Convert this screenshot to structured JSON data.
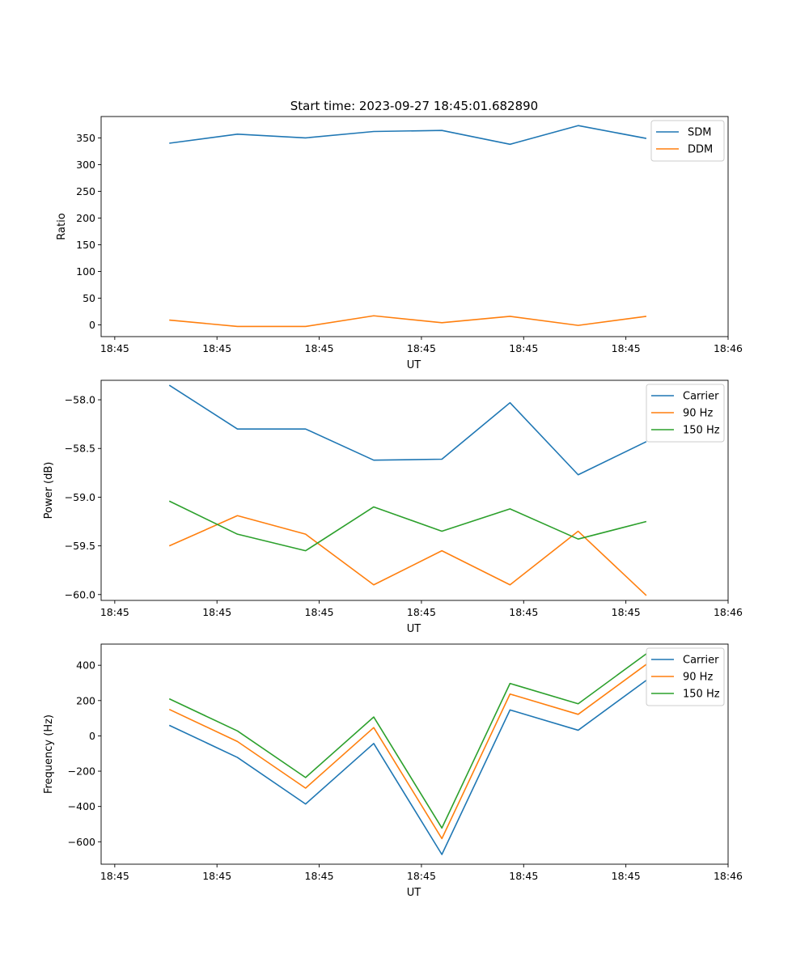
{
  "figure_title": "Start time: 2023-09-27 18:45:01.682890",
  "colors": {
    "blue": "#1f77b4",
    "orange": "#ff7f0e",
    "green": "#2ca02c",
    "axis": "#000000"
  },
  "chart_data": [
    {
      "type": "line",
      "title": "Start time: 2023-09-27 18:45:01.682890",
      "xlabel": "UT",
      "ylabel": "Ratio",
      "x": [
        1,
        2,
        3,
        4,
        5,
        6,
        7,
        8
      ],
      "xlim": [
        0,
        9.2
      ],
      "xticks": [
        0.2,
        1.7,
        3.2,
        4.7,
        6.2,
        7.7,
        9.2
      ],
      "xtick_labels": [
        "18:45",
        "18:45",
        "18:45",
        "18:45",
        "18:45",
        "18:45",
        "18:46"
      ],
      "ylim": [
        -22,
        390
      ],
      "yticks": [
        0,
        50,
        100,
        150,
        200,
        250,
        300,
        350
      ],
      "ytick_labels": [
        "0",
        "50",
        "100",
        "150",
        "200",
        "250",
        "300",
        "350"
      ],
      "legend": "top-right",
      "series": [
        {
          "name": "SDM",
          "color": "#1f77b4",
          "values": [
            340,
            357,
            350,
            362,
            364,
            338,
            373,
            349
          ]
        },
        {
          "name": "DDM",
          "color": "#ff7f0e",
          "values": [
            9,
            -3,
            -3,
            17,
            4,
            16,
            -1,
            16
          ]
        }
      ]
    },
    {
      "type": "line",
      "title": "",
      "xlabel": "UT",
      "ylabel": "Power (dB)",
      "x": [
        1,
        2,
        3,
        4,
        5,
        6,
        7,
        8
      ],
      "xlim": [
        0,
        9.2
      ],
      "xticks": [
        0.2,
        1.7,
        3.2,
        4.7,
        6.2,
        7.7,
        9.2
      ],
      "xtick_labels": [
        "18:45",
        "18:45",
        "18:45",
        "18:45",
        "18:45",
        "18:45",
        "18:46"
      ],
      "ylim": [
        -60.06,
        -57.8
      ],
      "yticks": [
        -60.0,
        -59.5,
        -59.0,
        -58.5,
        -58.0
      ],
      "ytick_labels": [
        "−60.0",
        "−59.5",
        "−59.0",
        "−58.5",
        "−58.0"
      ],
      "legend": "top-right",
      "series": [
        {
          "name": "Carrier",
          "color": "#1f77b4",
          "values": [
            -57.85,
            -58.3,
            -58.3,
            -58.62,
            -58.61,
            -58.03,
            -58.77,
            -58.43
          ]
        },
        {
          "name": "90 Hz",
          "color": "#ff7f0e",
          "values": [
            -59.5,
            -59.19,
            -59.38,
            -59.9,
            -59.55,
            -59.9,
            -59.35,
            -60.01
          ]
        },
        {
          "name": "150 Hz",
          "color": "#2ca02c",
          "values": [
            -59.04,
            -59.38,
            -59.55,
            -59.1,
            -59.35,
            -59.12,
            -59.43,
            -59.25
          ]
        }
      ]
    },
    {
      "type": "line",
      "title": "",
      "xlabel": "UT",
      "ylabel": "Frequency (Hz)",
      "x": [
        1,
        2,
        3,
        4,
        5,
        6,
        7,
        8
      ],
      "xlim": [
        0,
        9.2
      ],
      "xticks": [
        0.2,
        1.7,
        3.2,
        4.7,
        6.2,
        7.7,
        9.2
      ],
      "xtick_labels": [
        "18:45",
        "18:45",
        "18:45",
        "18:45",
        "18:45",
        "18:45",
        "18:46"
      ],
      "ylim": [
        -727,
        520
      ],
      "yticks": [
        -600,
        -400,
        -200,
        0,
        200,
        400
      ],
      "ytick_labels": [
        "−600",
        "−400",
        "−200",
        "0",
        "200",
        "400"
      ],
      "legend": "top-right",
      "series": [
        {
          "name": "Carrier",
          "color": "#1f77b4",
          "values": [
            60,
            -122,
            -386,
            -43,
            -672,
            147,
            32,
            315
          ]
        },
        {
          "name": "90 Hz",
          "color": "#ff7f0e",
          "values": [
            150,
            -32,
            -296,
            47,
            -582,
            237,
            122,
            405
          ]
        },
        {
          "name": "150 Hz",
          "color": "#2ca02c",
          "values": [
            210,
            28,
            -236,
            107,
            -522,
            297,
            182,
            465
          ]
        }
      ]
    }
  ]
}
